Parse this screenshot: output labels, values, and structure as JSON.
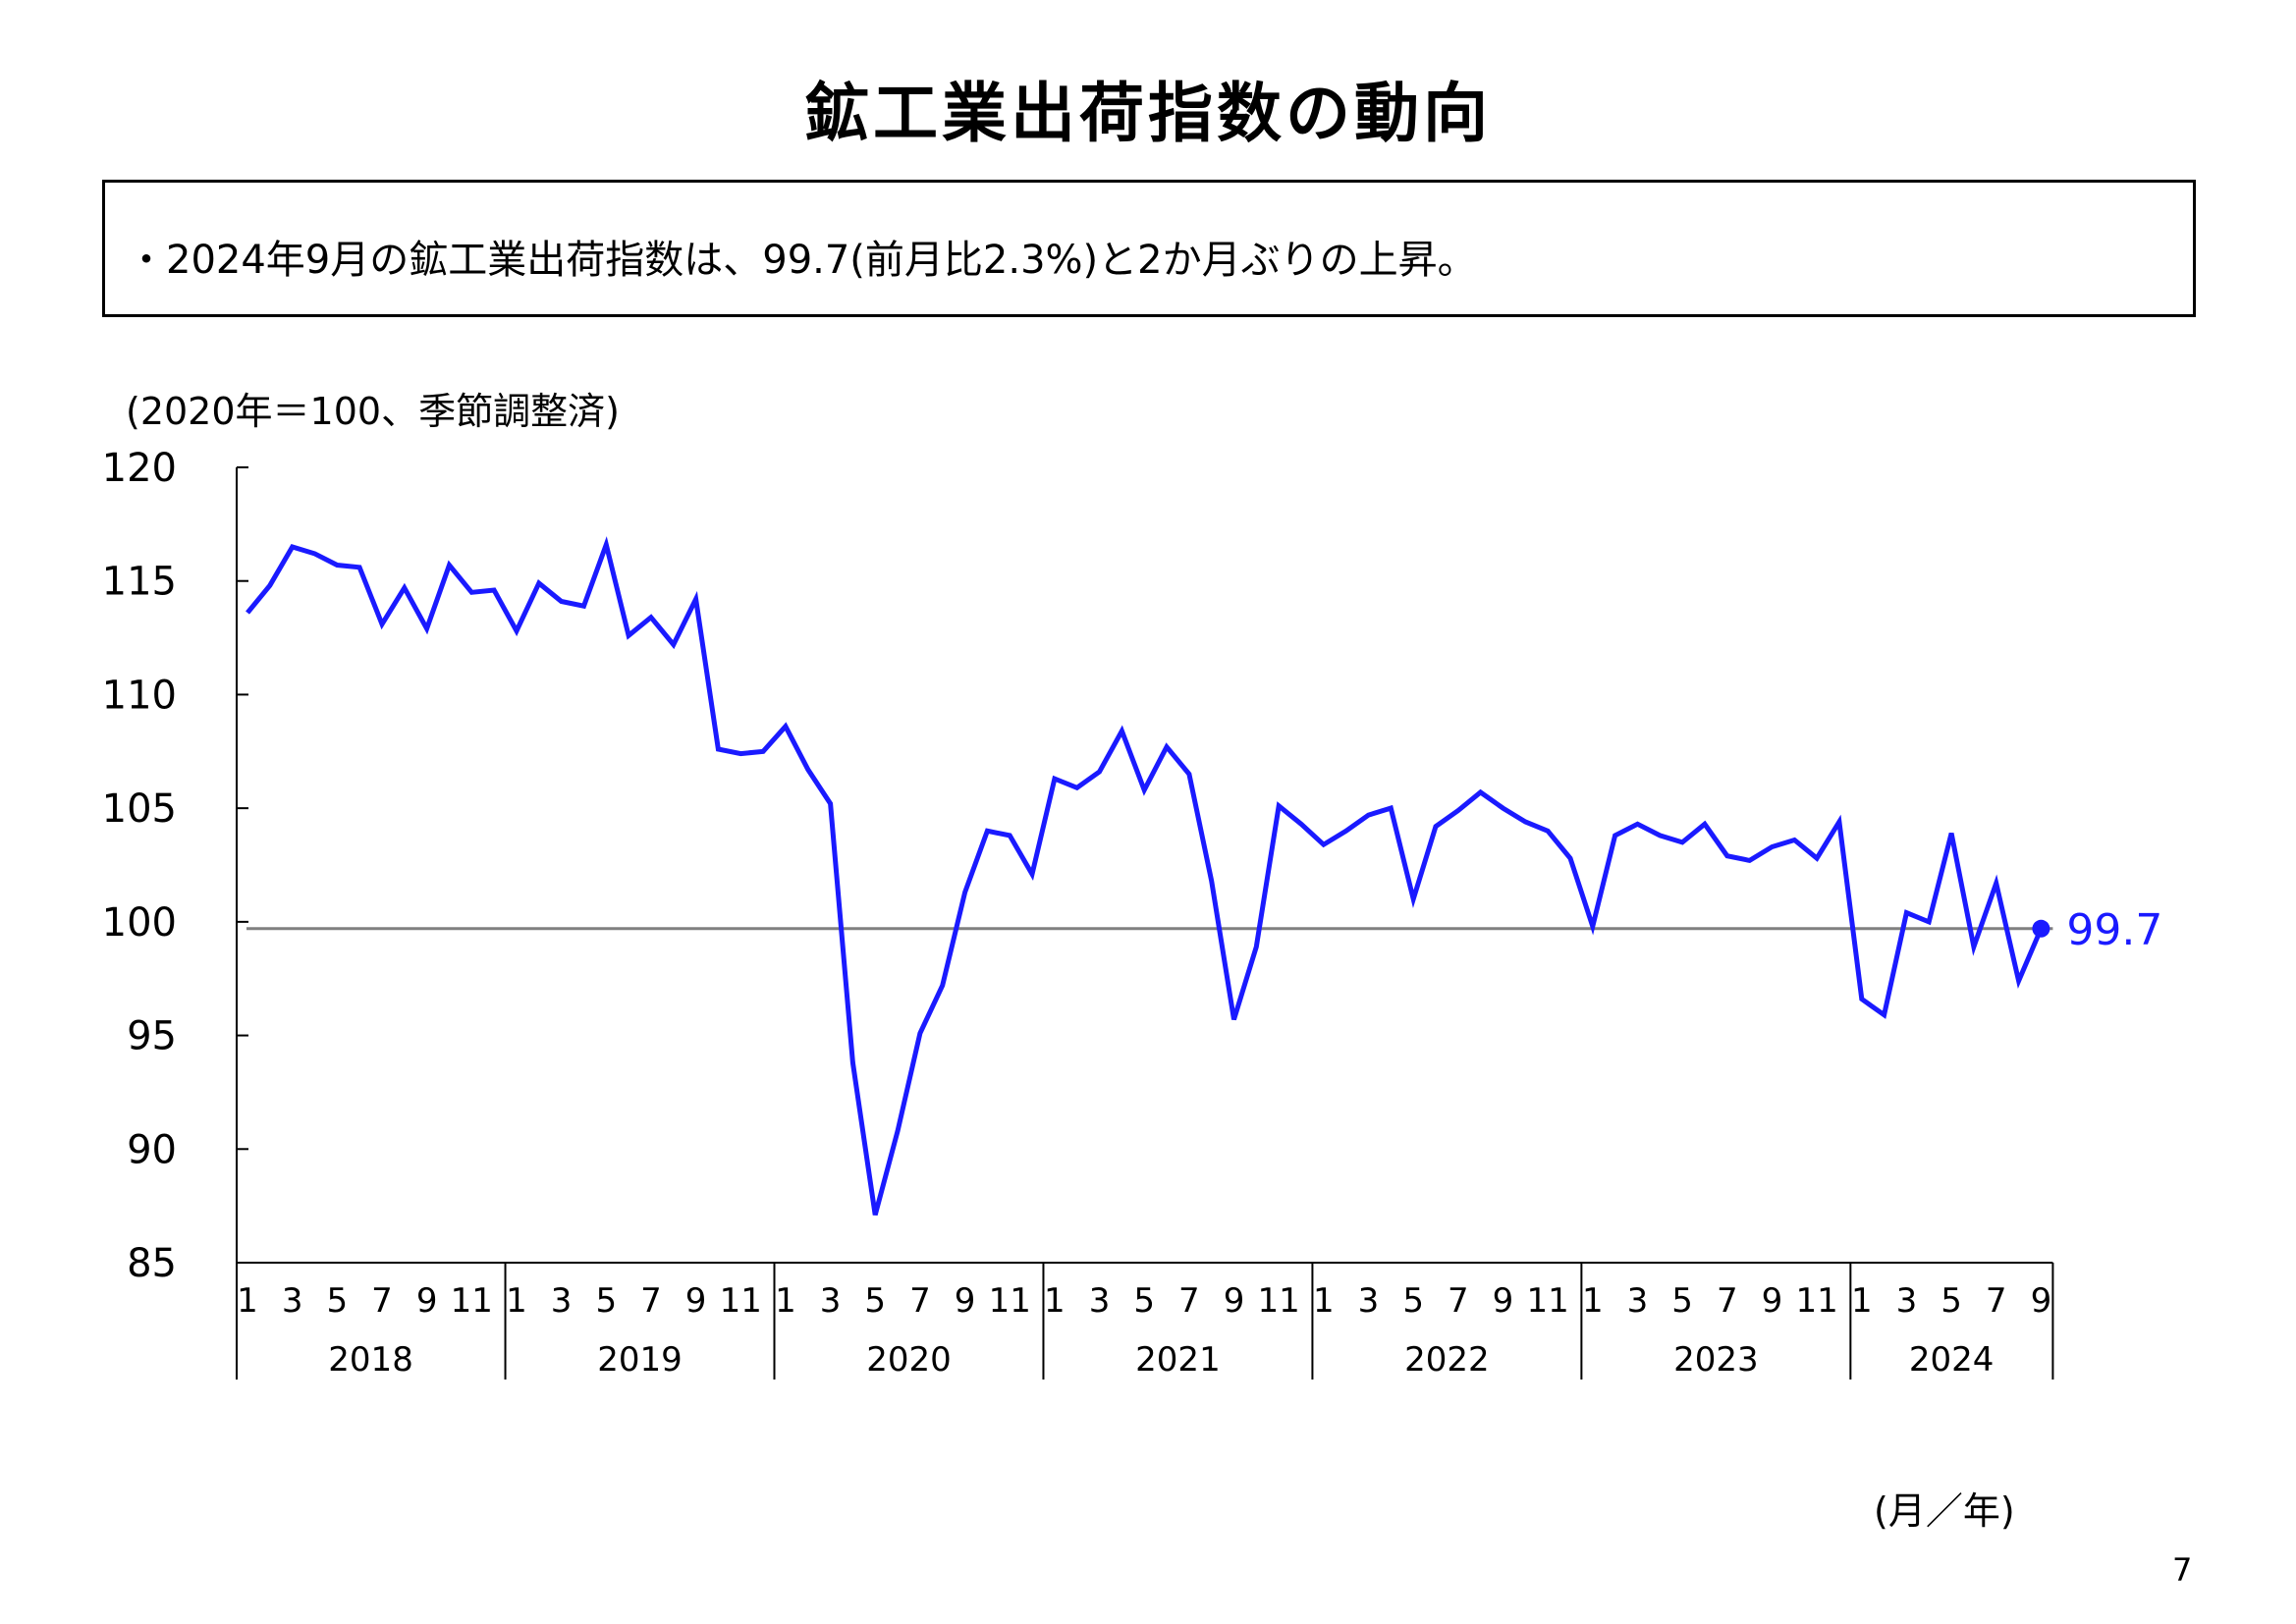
{
  "page": {
    "title": "鉱工業出荷指数の動向",
    "summary": "・2024年9月の鉱工業出荷指数は、99.7(前月比2.3%)と2か月ぶりの上昇。",
    "unit_note": "(2020年＝100、季節調整済)",
    "x_unit": "(月／年)",
    "page_number": "7"
  },
  "chart_data": {
    "type": "line",
    "ylim": [
      85,
      120
    ],
    "yticks": [
      85,
      90,
      95,
      100,
      105,
      110,
      115,
      120
    ],
    "month_tick_labels": [
      "1",
      "3",
      "5",
      "7",
      "9",
      "11"
    ],
    "years": [
      "2018",
      "2019",
      "2020",
      "2021",
      "2022",
      "2023",
      "2024"
    ],
    "last_year_month_tick_labels": [
      "1",
      "3",
      "5",
      "7",
      "9"
    ],
    "reference_line": 99.7,
    "end_label": "99.7",
    "series_color": "#1a1aff",
    "reference_color": "#808080",
    "series": [
      {
        "values": [
          113.6,
          114.8,
          116.5,
          116.2,
          115.7,
          115.6,
          113.1,
          114.7,
          112.9,
          115.7,
          114.5,
          114.6,
          112.8,
          114.9,
          114.1,
          113.9,
          116.6,
          112.6,
          113.4,
          112.2,
          114.2,
          107.6,
          107.4,
          107.5,
          108.6,
          106.7,
          105.2,
          93.8,
          87.1,
          90.8,
          95.1,
          97.2,
          101.3,
          104.0,
          103.8,
          102.1,
          106.3,
          105.9,
          106.6,
          108.4,
          105.8,
          107.7,
          106.5,
          101.8,
          95.7,
          98.9,
          105.1,
          104.3,
          103.4,
          104.0,
          104.7,
          105.0,
          101.0,
          104.2,
          104.9,
          105.7,
          105.0,
          104.4,
          104.0,
          102.8,
          99.8,
          103.8,
          104.3,
          103.8,
          103.5,
          104.3,
          102.9,
          102.7,
          103.3,
          103.6,
          102.8,
          104.4,
          96.6,
          95.9,
          100.4,
          100.0,
          103.9,
          98.9,
          101.7,
          97.4,
          99.7
        ]
      }
    ]
  }
}
